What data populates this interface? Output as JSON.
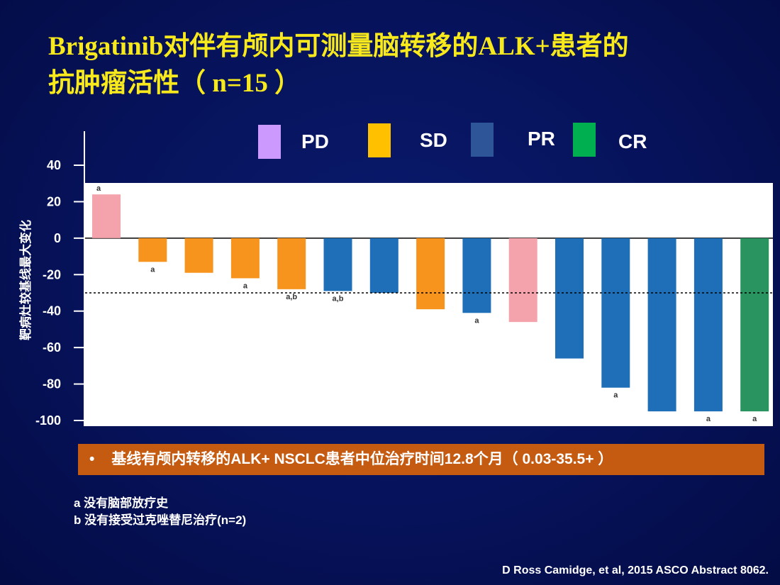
{
  "title": {
    "line1": "Brigatinib对伴有颅内可测量脑转移的ALK+患者的",
    "line2": "抗肿瘤活性（ n=15 ）"
  },
  "banner": {
    "bullet": "•",
    "text": "基线有颅内转移的ALK+ NSCLC患者中位治疗时间12.8个月（ 0.03-35.5+ ）",
    "color": "#c55a11"
  },
  "footnotes": {
    "a": "a 没有脑部放疗史",
    "b": "b 没有接受过克唑替尼治疗(n=2)"
  },
  "source": "D Ross Camidge, et al, 2015 ASCO Abstract  8062.",
  "chart_data": {
    "type": "bar",
    "title": "",
    "ylabel": "靶病灶较基线最大变化",
    "xlabel": "",
    "ylim": [
      -100,
      40
    ],
    "yticks": [
      40,
      20,
      0,
      -20,
      -40,
      -60,
      -80,
      -100
    ],
    "reference_line": -30,
    "legend": [
      {
        "key": "PD",
        "label": "PD",
        "color": "#cc99ff"
      },
      {
        "key": "SD",
        "label": "SD",
        "color": "#ffc000"
      },
      {
        "key": "PR",
        "label": "PR",
        "color": "#2e5597"
      },
      {
        "key": "CR",
        "label": "CR",
        "color": "#00b050"
      }
    ],
    "bar_colors": {
      "PD": "#f4a3ac",
      "SD": "#f7941d",
      "PR": "#1f6fb8",
      "CR": "#2a9460"
    },
    "bars": [
      {
        "value": 24,
        "response": "PD",
        "note": "a"
      },
      {
        "value": -13,
        "response": "SD",
        "note": "a"
      },
      {
        "value": -19,
        "response": "SD",
        "note": ""
      },
      {
        "value": -22,
        "response": "SD",
        "note": "a"
      },
      {
        "value": -28,
        "response": "SD",
        "note": "a,b"
      },
      {
        "value": -29,
        "response": "PR",
        "note": "a,b"
      },
      {
        "value": -30,
        "response": "PR",
        "note": ""
      },
      {
        "value": -39,
        "response": "SD",
        "note": ""
      },
      {
        "value": -41,
        "response": "PR",
        "note": "a"
      },
      {
        "value": -46,
        "response": "PD",
        "note": ""
      },
      {
        "value": -66,
        "response": "PR",
        "note": ""
      },
      {
        "value": -82,
        "response": "PR",
        "note": "a"
      },
      {
        "value": -95,
        "response": "PR",
        "note": ""
      },
      {
        "value": -95,
        "response": "PR",
        "note": "a"
      },
      {
        "value": -95,
        "response": "CR",
        "note": "a"
      }
    ]
  }
}
